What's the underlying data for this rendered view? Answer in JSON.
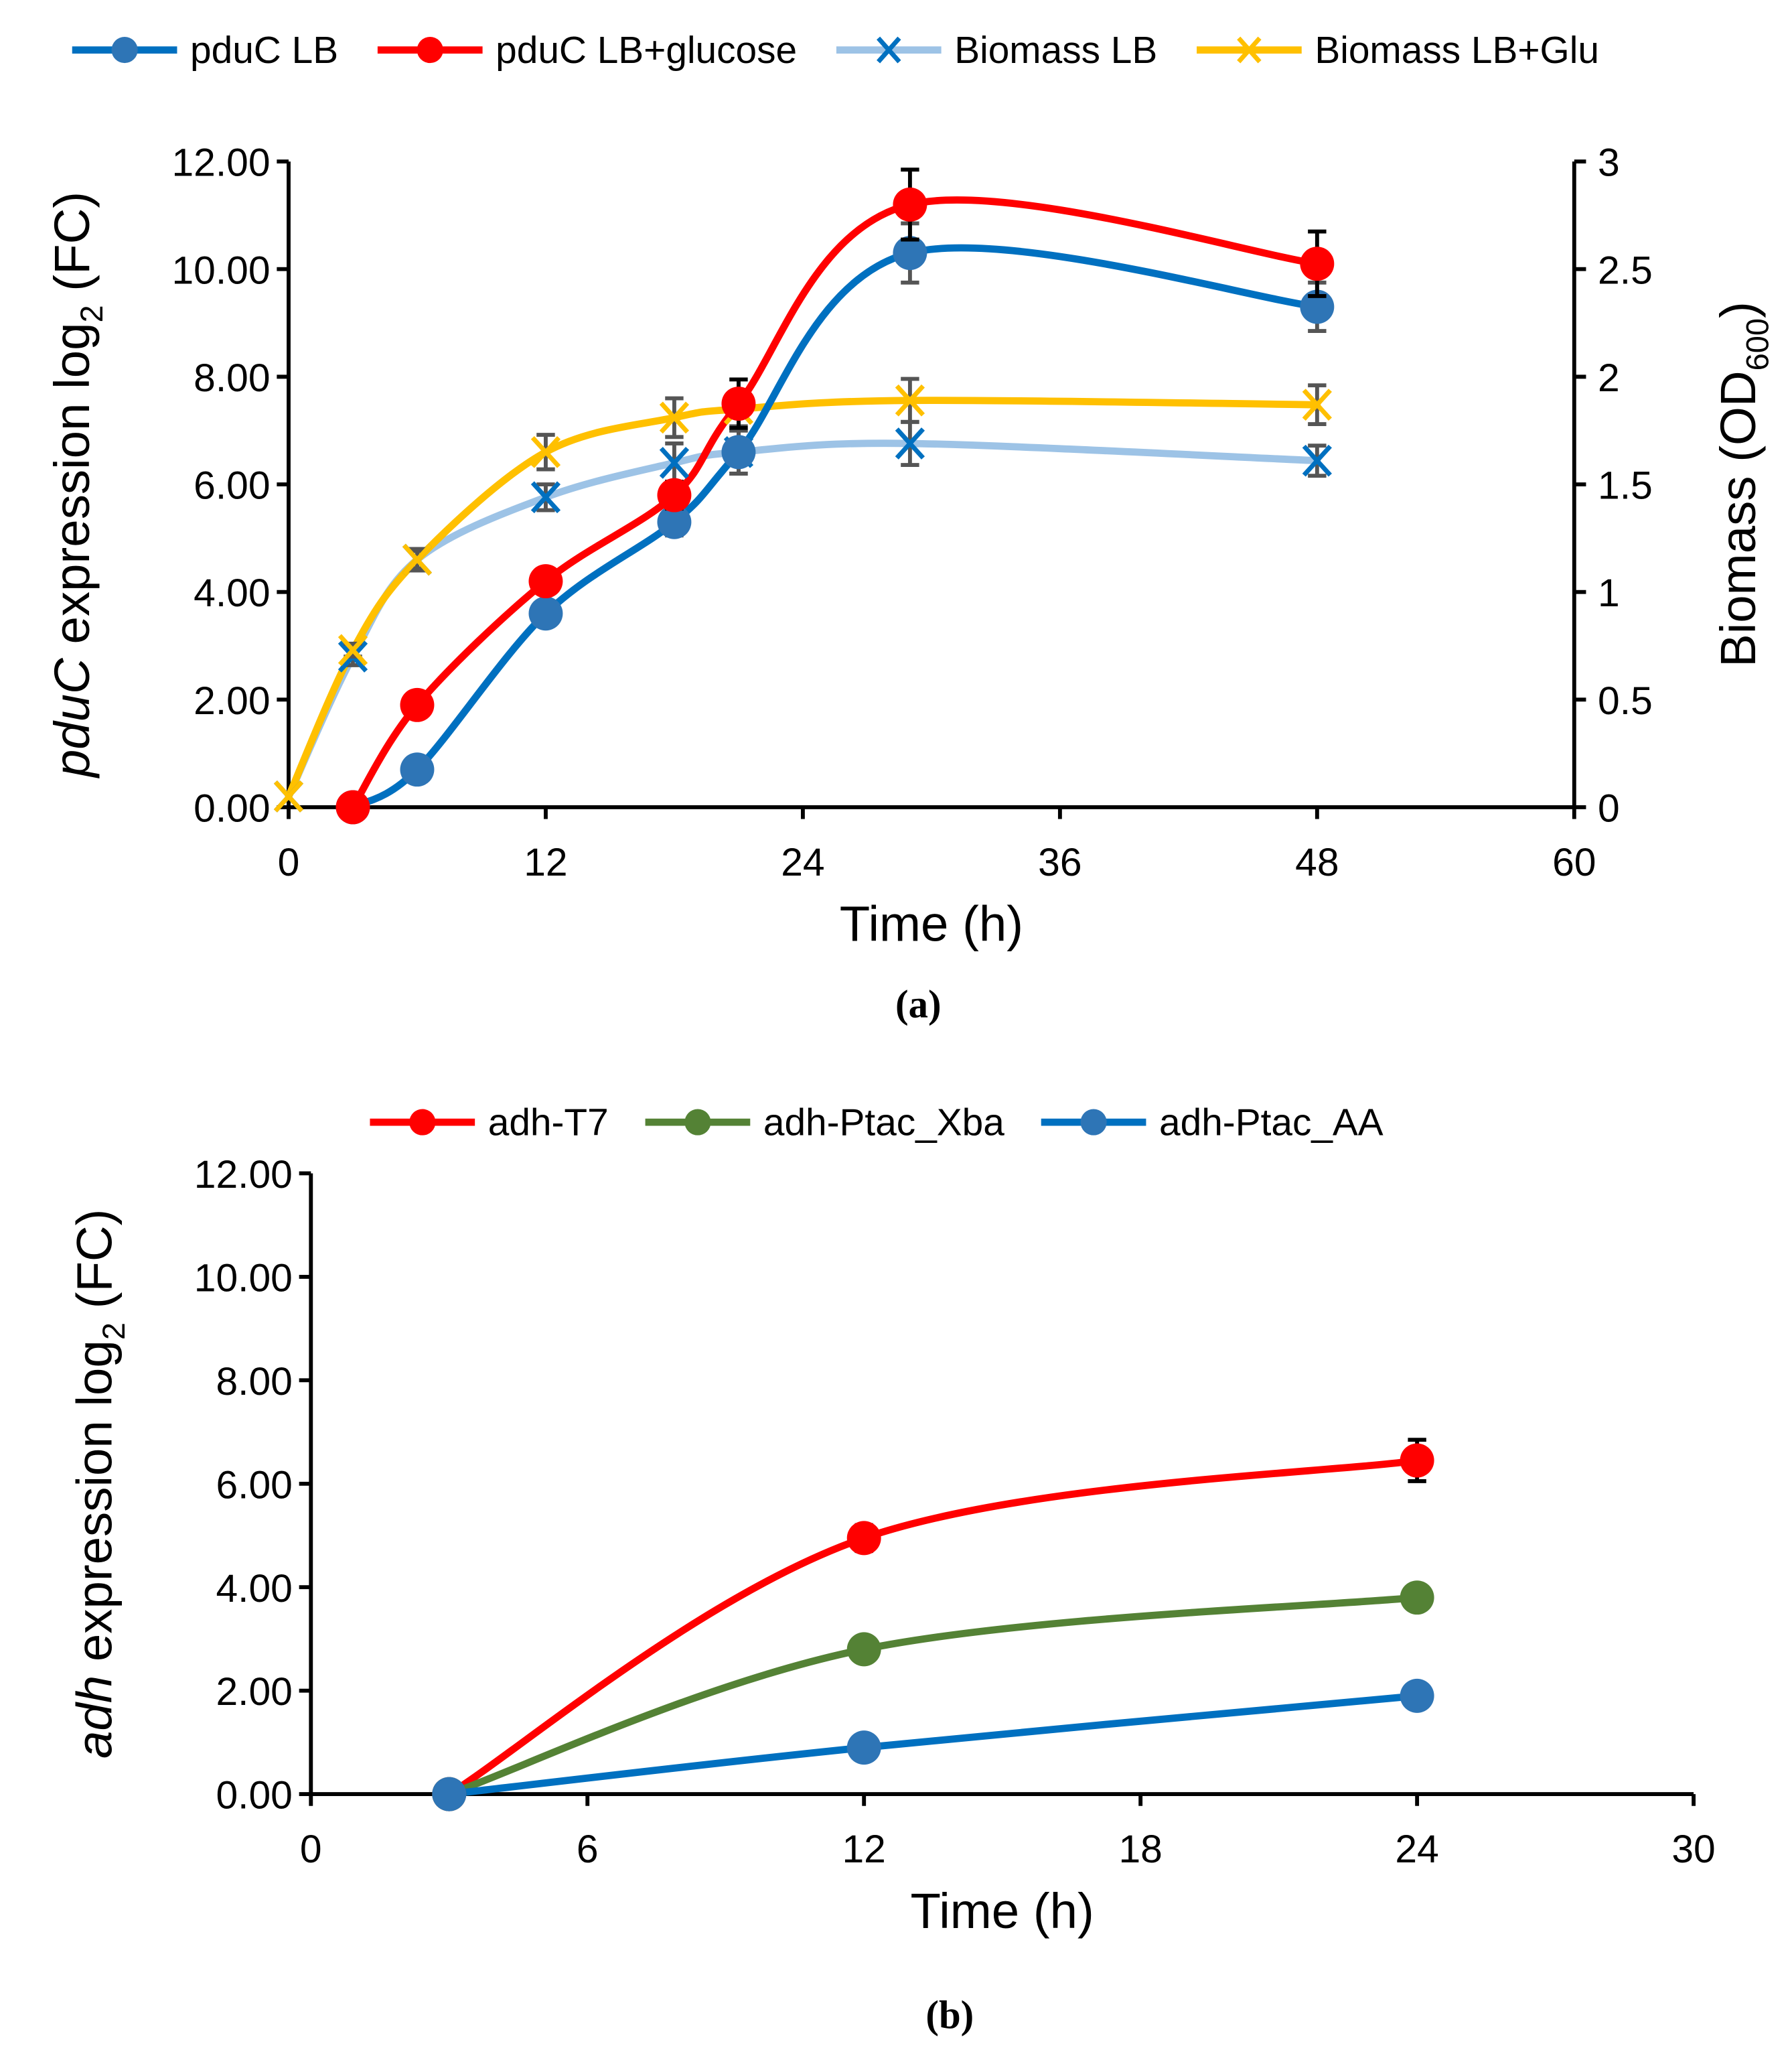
{
  "chart_data": [
    {
      "type": "line",
      "caption": "(a)",
      "xlabel": "Time (h)",
      "ylabel_italic": "pduC",
      "ylabel_rest": " expression log",
      "ylabel_sub": "2",
      "ylabel_end": " (FC)",
      "y2label": "Biomass (OD",
      "y2label_sub": "600",
      "y2label_end": ")",
      "xlim": [
        0,
        60
      ],
      "xticks": [
        "0",
        "12",
        "24",
        "36",
        "48",
        "60"
      ],
      "ylim": [
        0,
        12
      ],
      "yticks": [
        "0.00",
        "2.00",
        "4.00",
        "6.00",
        "8.00",
        "10.00",
        "12.00"
      ],
      "y2lim": [
        0,
        3
      ],
      "y2ticks": [
        "0",
        "0.5",
        "1",
        "1.5",
        "2",
        "2.5",
        "3"
      ],
      "legend_position": "top",
      "series": [
        {
          "name": "pduC LB",
          "axis": "left",
          "marker": "circle",
          "color": "#0070C0",
          "marker_color": "#2E75B6",
          "x": [
            3,
            6,
            12,
            18,
            21,
            29,
            48
          ],
          "y": [
            0,
            0.7,
            3.6,
            5.3,
            6.6,
            10.3,
            9.3
          ],
          "err": [
            0,
            0,
            0.2,
            0.25,
            0.4,
            0.55,
            0.45
          ],
          "err_color": "#555555"
        },
        {
          "name": "pduC LB+glucose",
          "axis": "left",
          "marker": "circle",
          "color": "#FF0000",
          "marker_color": "#FF0000",
          "x": [
            3,
            6,
            12,
            18,
            21,
            29,
            48
          ],
          "y": [
            0,
            1.9,
            4.2,
            5.8,
            7.5,
            11.2,
            10.1
          ],
          "err": [
            0,
            0,
            0.2,
            0.25,
            0.45,
            0.65,
            0.6
          ],
          "err_color": "#000000"
        },
        {
          "name": "Biomass LB",
          "axis": "right",
          "marker": "x",
          "color": "#9DC3E6",
          "marker_color": "#0070C0",
          "x": [
            0,
            3,
            6,
            12,
            18,
            21,
            29,
            48
          ],
          "y": [
            0.05,
            0.7,
            1.15,
            1.44,
            1.6,
            1.65,
            1.69,
            1.61
          ],
          "err": [
            0,
            0.04,
            0.05,
            0.06,
            0.09,
            0.1,
            0.1,
            0.07
          ],
          "err_color": "#555555"
        },
        {
          "name": "Biomass LB+Glu",
          "axis": "right",
          "marker": "x",
          "color": "#FFC000",
          "marker_color": "#FFC000",
          "x": [
            0,
            3,
            6,
            12,
            18,
            21,
            29,
            48
          ],
          "y": [
            0.05,
            0.73,
            1.15,
            1.65,
            1.81,
            1.85,
            1.89,
            1.87
          ],
          "err": [
            0,
            0.03,
            0.04,
            0.08,
            0.09,
            0.08,
            0.1,
            0.09
          ],
          "err_color": "#555555"
        }
      ]
    },
    {
      "type": "line",
      "caption": "(b)",
      "xlabel": "Time (h)",
      "ylabel_italic": "adh",
      "ylabel_rest": " expression log",
      "ylabel_sub": "2",
      "ylabel_end": " (FC)",
      "xlim": [
        0,
        30
      ],
      "xticks": [
        "0",
        "6",
        "12",
        "18",
        "24",
        "30"
      ],
      "ylim": [
        0,
        12
      ],
      "yticks": [
        "0.00",
        "2.00",
        "4.00",
        "6.00",
        "8.00",
        "10.00",
        "12.00"
      ],
      "legend_position": "top",
      "series": [
        {
          "name": "adh-T7",
          "axis": "left",
          "marker": "circle",
          "color": "#FF0000",
          "marker_color": "#FF0000",
          "x": [
            3,
            12,
            24
          ],
          "y": [
            0,
            4.95,
            6.45
          ],
          "err": [
            0,
            0.25,
            0.4
          ],
          "err_color": "#000000"
        },
        {
          "name": "adh-Ptac_Xba",
          "axis": "left",
          "marker": "circle",
          "color": "#548235",
          "marker_color": "#548235",
          "x": [
            3,
            12,
            24
          ],
          "y": [
            0,
            2.8,
            3.8
          ],
          "err": [
            0,
            0.1,
            0.15
          ],
          "err_color": "#555555"
        },
        {
          "name": "adh-Ptac_AA",
          "axis": "left",
          "marker": "circle",
          "color": "#0070C0",
          "marker_color": "#2E75B6",
          "x": [
            3,
            12,
            24
          ],
          "y": [
            0,
            0.9,
            1.9
          ],
          "err": [
            0,
            0.05,
            0.1
          ],
          "err_color": "#555555"
        }
      ]
    }
  ]
}
